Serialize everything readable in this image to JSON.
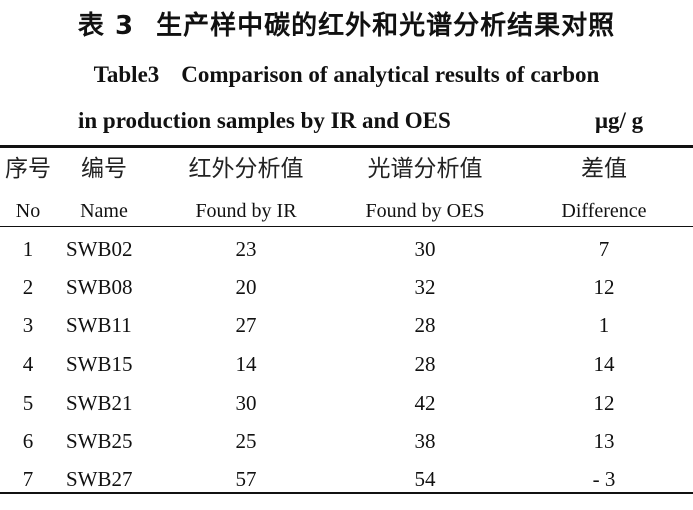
{
  "caption": {
    "cn_number": "表 3",
    "cn_title": "生产样中碳的红外和光谱分析结果对照",
    "en_label": "Table3",
    "en_title_line1": "Comparison of analytical results of carbon",
    "en_title_line2": "in production samples by IR and OES",
    "unit": "μg/ g"
  },
  "table": {
    "headers_cn": [
      "序号",
      "编号",
      "红外分析值",
      "光谱分析值",
      "差值"
    ],
    "headers_en": [
      "No",
      "Name",
      "Found by IR",
      "Found by OES",
      "Difference"
    ],
    "rows": [
      [
        "1",
        "SWB02",
        "23",
        "30",
        "7"
      ],
      [
        "2",
        "SWB08",
        "20",
        "32",
        "12"
      ],
      [
        "3",
        "SWB11",
        "27",
        "28",
        "1"
      ],
      [
        "4",
        "SWB15",
        "14",
        "28",
        "14"
      ],
      [
        "5",
        "SWB21",
        "30",
        "42",
        "12"
      ],
      [
        "6",
        "SWB25",
        "25",
        "38",
        "13"
      ],
      [
        "7",
        "SWB27",
        "57",
        "54",
        "- 3"
      ]
    ]
  }
}
